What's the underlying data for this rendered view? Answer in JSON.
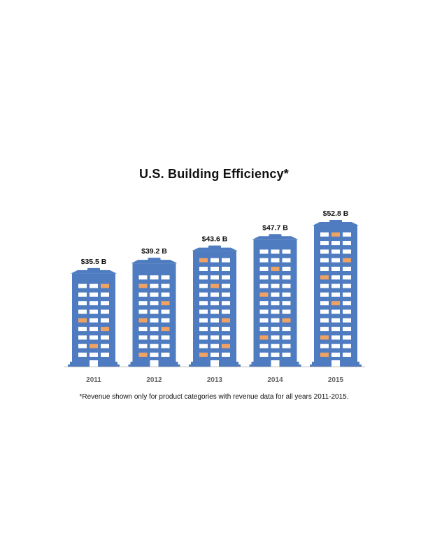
{
  "chart_data": {
    "type": "bar",
    "title": "U.S. Building Efficiency*",
    "categories": [
      "2011",
      "2012",
      "2013",
      "2014",
      "2015"
    ],
    "values": [
      35.5,
      39.2,
      43.6,
      47.7,
      52.8
    ],
    "value_labels": [
      "$35.5 B",
      "$39.2 B",
      "$43.6 B",
      "$47.7 B",
      "$52.8 B"
    ],
    "xlabel": "",
    "ylabel": "",
    "grid": false,
    "colors": {
      "building": "#4f7cc0",
      "window": "#ffffff",
      "lit_window": "#f0a263",
      "baseline": "#bbbbbb"
    }
  },
  "footnote": "*Revenue shown only for product categories with revenue data for all years 2011-2015."
}
